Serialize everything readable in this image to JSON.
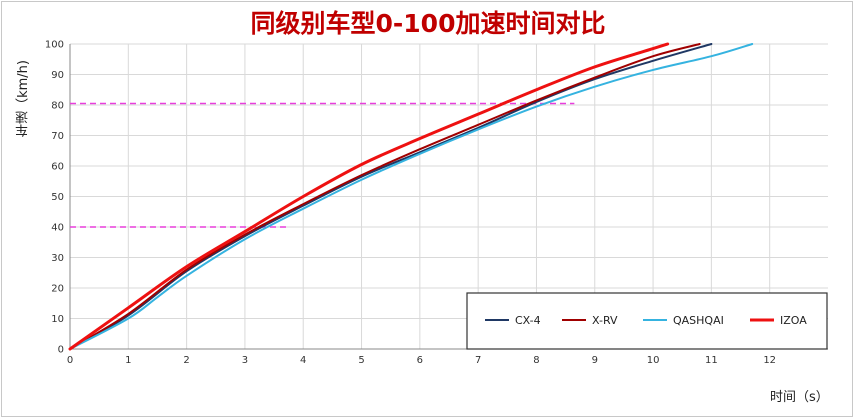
{
  "chart_data": {
    "type": "line",
    "title": "同级别车型0-100加速时间对比",
    "xlabel": "时间（s）",
    "ylabel": "车速（km/h)",
    "xlim": [
      0,
      13
    ],
    "ylim": [
      0,
      100
    ],
    "x_ticks": [
      "0",
      "1",
      "2",
      "3",
      "4",
      "5",
      "6",
      "7",
      "8",
      "9",
      "10",
      "11",
      "12"
    ],
    "y_ticks": [
      "0",
      "10",
      "20",
      "30",
      "40",
      "50",
      "60",
      "70",
      "80",
      "90",
      "100"
    ],
    "grid": true,
    "legend_position": "bottom-right",
    "reference_lines": [
      {
        "y": 40,
        "x_end": 3.75,
        "color": "#e83edc"
      },
      {
        "y": 80.5,
        "x_end": 8.65,
        "color": "#e83edc"
      }
    ],
    "series": [
      {
        "name": "CX-4",
        "color": "#1f3864",
        "width": 2,
        "points": [
          [
            0,
            0
          ],
          [
            1,
            11
          ],
          [
            2,
            25.5
          ],
          [
            3,
            37
          ],
          [
            4,
            47
          ],
          [
            5,
            56.5
          ],
          [
            6,
            64.5
          ],
          [
            7,
            72.5
          ],
          [
            8,
            81
          ],
          [
            9,
            88.5
          ],
          [
            10,
            94.5
          ],
          [
            11,
            100
          ]
        ]
      },
      {
        "name": "X-RV",
        "color": "#a00000",
        "width": 2,
        "points": [
          [
            0,
            0
          ],
          [
            1,
            11.5
          ],
          [
            2,
            26
          ],
          [
            3,
            37.5
          ],
          [
            4,
            47.5
          ],
          [
            5,
            57
          ],
          [
            6,
            65.5
          ],
          [
            7,
            73.5
          ],
          [
            8,
            81.5
          ],
          [
            9,
            89
          ],
          [
            10,
            96
          ],
          [
            10.8,
            100
          ]
        ]
      },
      {
        "name": "QASHQAI",
        "color": "#35b3e0",
        "width": 2,
        "points": [
          [
            0,
            0
          ],
          [
            1,
            10
          ],
          [
            1.5,
            17
          ],
          [
            2,
            24
          ],
          [
            3,
            36
          ],
          [
            4,
            46
          ],
          [
            5,
            55.5
          ],
          [
            6,
            64
          ],
          [
            7,
            72
          ],
          [
            8,
            79.5
          ],
          [
            9,
            86
          ],
          [
            10,
            91.5
          ],
          [
            11,
            96
          ],
          [
            11.7,
            100
          ]
        ]
      },
      {
        "name": "IZOA",
        "color": "#ee1111",
        "width": 3,
        "points": [
          [
            0,
            0
          ],
          [
            1,
            13.5
          ],
          [
            2,
            27
          ],
          [
            3,
            38.5
          ],
          [
            4,
            50
          ],
          [
            5,
            60.5
          ],
          [
            6,
            69
          ],
          [
            7,
            77
          ],
          [
            8,
            85
          ],
          [
            9,
            92.5
          ],
          [
            10,
            98.5
          ],
          [
            10.25,
            100
          ]
        ]
      }
    ]
  }
}
